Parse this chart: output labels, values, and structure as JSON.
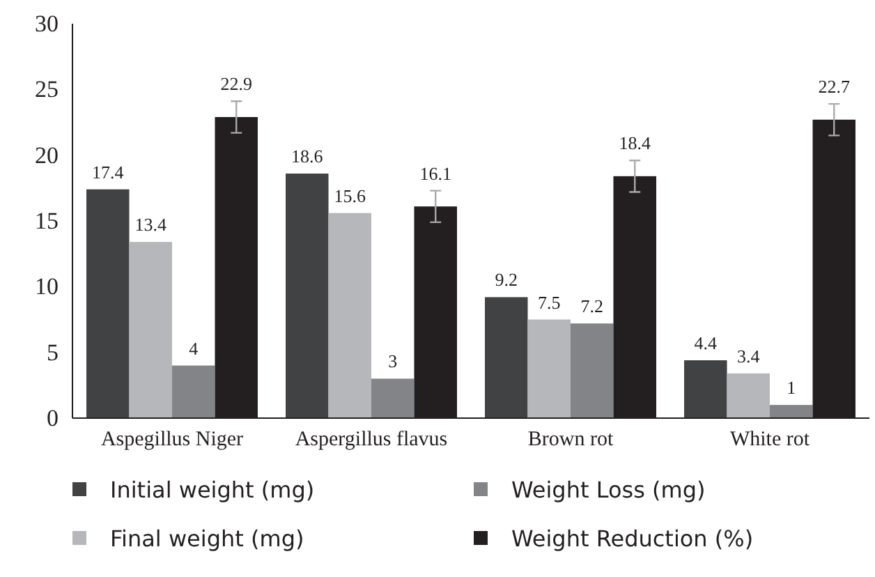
{
  "chart_data": {
    "type": "bar",
    "categories": [
      "Aspegillus Niger",
      "Aspergillus flavus",
      "Brown rot",
      "White rot"
    ],
    "series": [
      {
        "name": "Initial weight (mg)",
        "color": "#414244",
        "values": [
          17.4,
          18.6,
          9.2,
          4.4
        ]
      },
      {
        "name": "Final weight (mg)",
        "color": "#b6b7ba",
        "values": [
          13.4,
          15.6,
          7.5,
          3.4
        ]
      },
      {
        "name": "Weight Loss (mg)",
        "color": "#838487",
        "values": [
          4,
          3,
          7.2,
          1
        ]
      },
      {
        "name": "Weight Reduction (%)",
        "color": "#231f20",
        "values": [
          22.9,
          16.1,
          18.4,
          22.7
        ],
        "errors": [
          1.2,
          1.2,
          1.2,
          1.2
        ]
      }
    ],
    "ylim": [
      0,
      30
    ],
    "yticks": [
      0,
      5,
      10,
      15,
      20,
      25,
      30
    ],
    "data_labels": true,
    "grid": false,
    "legend": "bottom"
  }
}
